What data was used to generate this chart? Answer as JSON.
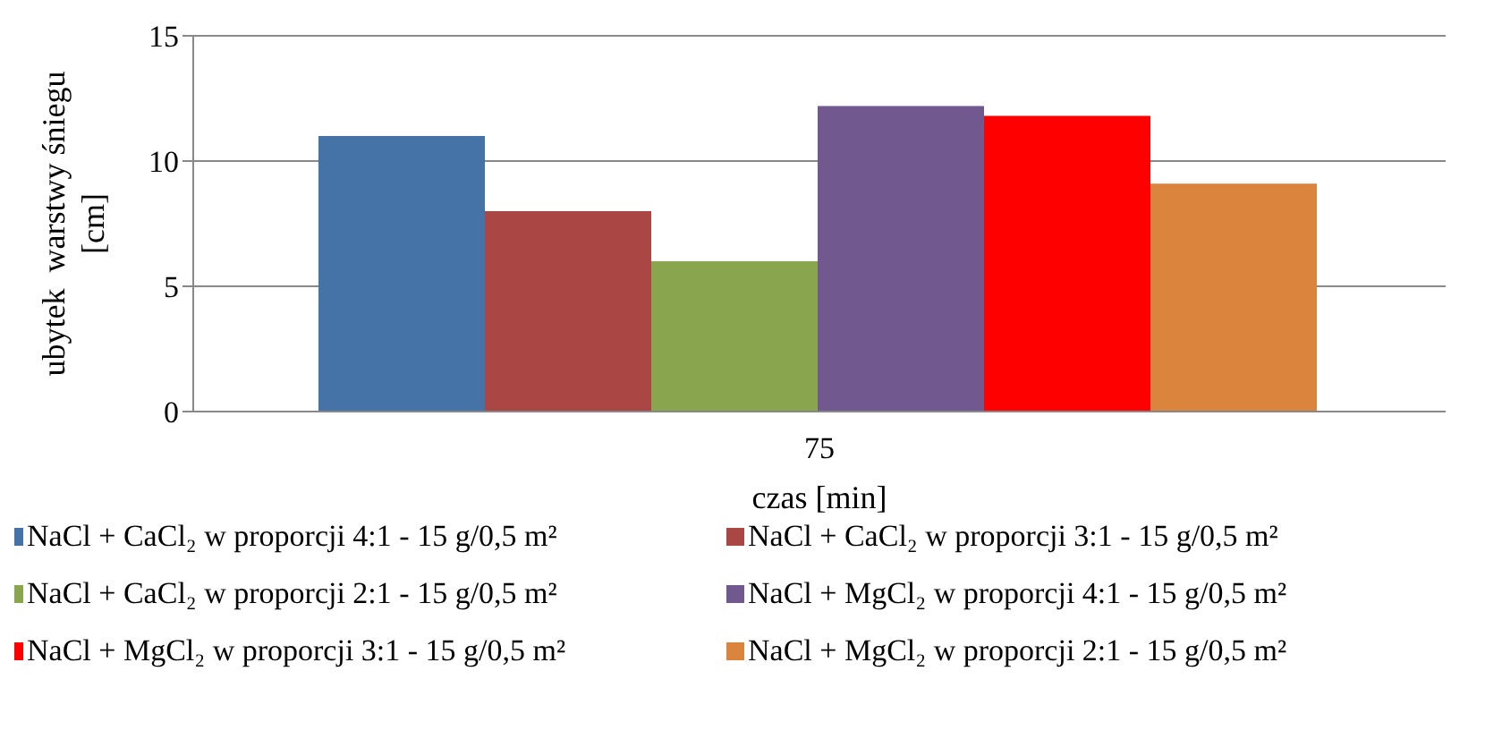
{
  "chart_data": {
    "type": "bar",
    "xlabel": "czas [min]",
    "ylabel": "ubytek  warstwy śniegu [cm]",
    "categories": [
      "75"
    ],
    "series": [
      {
        "name": "NaCl + CaCl₂ w proporcji 4:1 - 15 g/0,5 m²",
        "color": "#4572a7",
        "values": [
          11
        ]
      },
      {
        "name": "NaCl + CaCl₂ w proporcji 3:1 - 15 g/0,5 m²",
        "color": "#aa4643",
        "values": [
          8
        ]
      },
      {
        "name": "NaCl + CaCl₂ w proporcji 2:1 - 15 g/0,5 m²",
        "color": "#89a54e",
        "values": [
          6
        ]
      },
      {
        "name": "NaCl + MgCl₂ w proporcji 4:1 - 15 g/0,5 m²",
        "color": "#71588f",
        "values": [
          12.2
        ]
      },
      {
        "name": "NaCl + MgCl₂ w proporcji 3:1 - 15 g/0,5 m²",
        "color": "#ff0000",
        "values": [
          11.8
        ]
      },
      {
        "name": "NaCl + MgCl₂ w proporcji 2:1 - 15 g/0,5 m²",
        "color": "#db843d",
        "values": [
          9.1
        ]
      }
    ],
    "ylim": [
      0,
      15
    ],
    "yticks": [
      0,
      5,
      10,
      15
    ],
    "grid": "y",
    "legend": "bottom"
  }
}
